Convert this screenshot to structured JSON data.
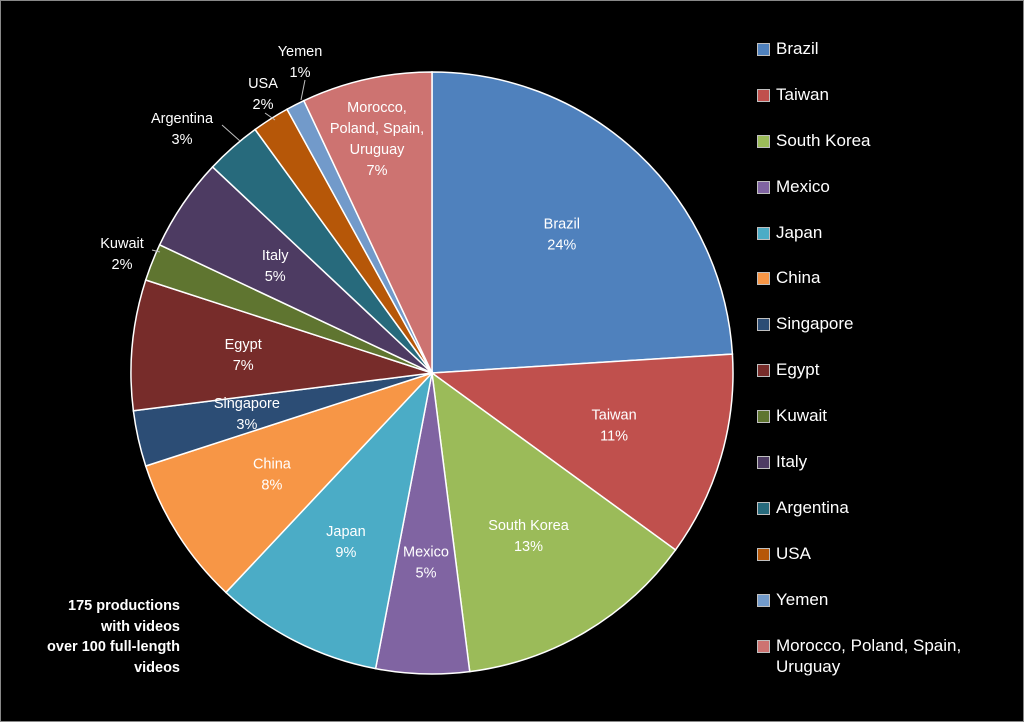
{
  "chart_data": {
    "type": "pie",
    "title": "",
    "legend_position": "right",
    "slices": [
      {
        "label": "Brazil",
        "value": 24,
        "value_label": "24%",
        "color": "#4F81BD",
        "label_placement": "inside"
      },
      {
        "label": "Taiwan",
        "value": 11,
        "value_label": "11%",
        "color": "#C0504D",
        "label_placement": "inside"
      },
      {
        "label": "South Korea",
        "value": 13,
        "value_label": "13%",
        "color": "#9BBB59",
        "label_placement": "inside"
      },
      {
        "label": "Mexico",
        "value": 5,
        "value_label": "5%",
        "color": "#8064A2",
        "label_placement": "inside"
      },
      {
        "label": "Japan",
        "value": 9,
        "value_label": "9%",
        "color": "#4BACC6",
        "label_placement": "inside"
      },
      {
        "label": "China",
        "value": 8,
        "value_label": "8%",
        "color": "#F79646",
        "label_placement": "inside"
      },
      {
        "label": "Singapore",
        "value": 3,
        "value_label": "3%",
        "color": "#2C4D75",
        "label_placement": "inside"
      },
      {
        "label": "Egypt",
        "value": 7,
        "value_label": "7%",
        "color": "#772C2A",
        "label_placement": "inside"
      },
      {
        "label": "Kuwait",
        "value": 2,
        "value_label": "2%",
        "color": "#5F7530",
        "label_placement": "outside"
      },
      {
        "label": "Italy",
        "value": 5,
        "value_label": "5%",
        "color": "#4D3B62",
        "label_placement": "inside"
      },
      {
        "label": "Argentina",
        "value": 3,
        "value_label": "3%",
        "color": "#276A7C",
        "label_placement": "outside"
      },
      {
        "label": "USA",
        "value": 2,
        "value_label": "2%",
        "color": "#B65708",
        "label_placement": "outside"
      },
      {
        "label": "Yemen",
        "value": 1,
        "value_label": "1%",
        "color": "#729ACA",
        "label_placement": "outside"
      },
      {
        "label": "Morocco, Poland, Spain, Uruguay",
        "value": 7,
        "value_label": "7%",
        "color": "#CD7371",
        "label_placement": "inside",
        "label_lines": [
          "Morocco,",
          "Poland, Spain,",
          "Uruguay"
        ]
      }
    ]
  },
  "note": {
    "lines": [
      "175 productions",
      "with videos",
      "over 100 full-length",
      "videos"
    ]
  }
}
